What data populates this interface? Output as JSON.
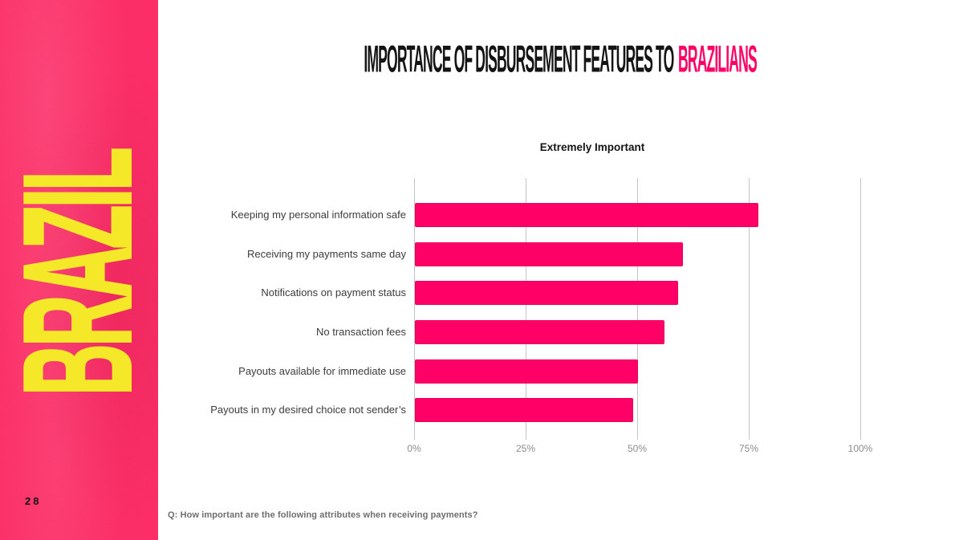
{
  "slide": {
    "page_number": "28",
    "sidebar_label": "BRAZIL",
    "footnote": "Q: How important are the following attributes when receiving payments?"
  },
  "title": {
    "main": "IMPORTANCE OF DISBURSEMENT FEATURES TO",
    "accent": "BRAZILIANS"
  },
  "chart_data": {
    "type": "bar",
    "orientation": "horizontal",
    "title": "Importance of Disbursement Features to Brazilians",
    "subtitle": "Extremely Important",
    "categories": [
      "Keeping my personal information safe",
      "Receiving my payments same day",
      "Notifications on payment status",
      "No transaction fees",
      "Payouts available for immediate use",
      "Payouts in my desired choice not sender’s"
    ],
    "values": [
      77,
      60,
      59,
      56,
      50,
      49
    ],
    "unit": "%",
    "xlim": [
      0,
      100
    ],
    "x_ticks": [
      "0%",
      "25%",
      "50%",
      "75%",
      "100%"
    ],
    "grid": true,
    "legend": "none",
    "bar_color": "#FF0066"
  },
  "colors": {
    "bar": "#FF0066",
    "title_accent": "#FF0066",
    "sidebar_background": "#FB2B60",
    "sidebar_text": "#F5E829",
    "gridline": "#C4C4C4",
    "tick_text": "#8C8C8C",
    "category_text": "#3C3C3C",
    "title_text": "#141414",
    "footnote_text": "#6E6E6E"
  }
}
